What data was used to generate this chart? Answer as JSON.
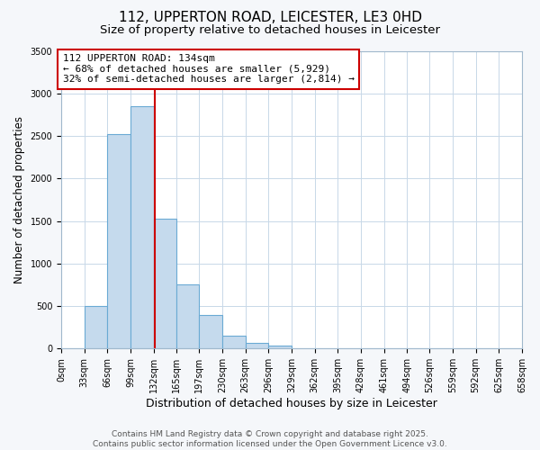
{
  "title": "112, UPPERTON ROAD, LEICESTER, LE3 0HD",
  "subtitle": "Size of property relative to detached houses in Leicester",
  "bar_edges": [
    0,
    33,
    66,
    99,
    132,
    165,
    197,
    230,
    263,
    296,
    329,
    362,
    395,
    428,
    461,
    494,
    526,
    559,
    592,
    625,
    658
  ],
  "bar_heights": [
    0,
    500,
    2520,
    2850,
    1530,
    750,
    400,
    155,
    65,
    40,
    0,
    0,
    0,
    0,
    0,
    0,
    0,
    0,
    0,
    0
  ],
  "bar_color": "#c5daed",
  "bar_edge_color": "#6aaad4",
  "vline_x": 134,
  "vline_color": "#cc0000",
  "annotation_title": "112 UPPERTON ROAD: 134sqm",
  "annotation_line1": "← 68% of detached houses are smaller (5,929)",
  "annotation_line2": "32% of semi-detached houses are larger (2,814) →",
  "annotation_box_color": "#ffffff",
  "annotation_box_edgecolor": "#cc0000",
  "xlabel": "Distribution of detached houses by size in Leicester",
  "ylabel": "Number of detached properties",
  "ylim": [
    0,
    3500
  ],
  "yticks": [
    0,
    500,
    1000,
    1500,
    2000,
    2500,
    3000,
    3500
  ],
  "xtick_labels": [
    "0sqm",
    "33sqm",
    "66sqm",
    "99sqm",
    "132sqm",
    "165sqm",
    "197sqm",
    "230sqm",
    "263sqm",
    "296sqm",
    "329sqm",
    "362sqm",
    "395sqm",
    "428sqm",
    "461sqm",
    "494sqm",
    "526sqm",
    "559sqm",
    "592sqm",
    "625sqm",
    "658sqm"
  ],
  "footer1": "Contains HM Land Registry data © Crown copyright and database right 2025.",
  "footer2": "Contains public sector information licensed under the Open Government Licence v3.0.",
  "bg_color": "#f5f7fa",
  "plot_bg_color": "#ffffff",
  "grid_color": "#c8d8e8",
  "title_fontsize": 11,
  "subtitle_fontsize": 9.5,
  "xlabel_fontsize": 9,
  "ylabel_fontsize": 8.5,
  "tick_fontsize": 7,
  "footer_fontsize": 6.5,
  "ann_fontsize": 8
}
